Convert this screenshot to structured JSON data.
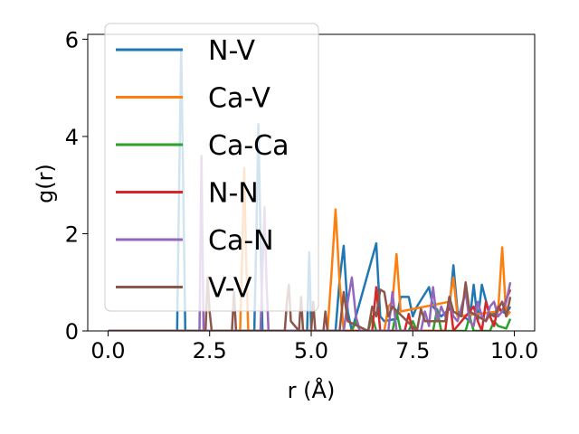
{
  "chart_data": {
    "type": "line",
    "title": "",
    "xlabel": "r (Å)",
    "ylabel": "g(r)",
    "xlim": [
      -0.5,
      10.5
    ],
    "ylim": [
      0,
      6.1
    ],
    "xticks": [
      "0.0",
      "2.5",
      "5.0",
      "7.5",
      "10.0"
    ],
    "yticks": [
      "0",
      "2",
      "4",
      "6"
    ],
    "legend": "upper-left",
    "grid": false,
    "series": [
      {
        "name": "N-V",
        "color": "#1f77b4",
        "x": [
          0,
          1.7,
          1.75,
          1.8,
          1.85,
          1.9,
          1.95,
          2.0,
          3.6,
          3.65,
          3.7,
          3.75,
          3.8,
          3.85,
          4.9,
          4.95,
          5.0,
          5.05,
          5.1,
          5.6,
          5.7,
          5.8,
          5.9,
          6.0,
          6.6,
          6.7,
          6.8,
          7.1,
          7.2,
          7.4,
          7.5,
          7.6,
          7.9,
          8.0,
          8.2,
          8.4,
          8.5,
          8.6,
          8.9,
          9.0,
          9.1,
          9.2,
          9.4,
          9.6,
          9.8,
          9.9
        ],
        "y": [
          0,
          0,
          3.0,
          5.8,
          3.0,
          0,
          0,
          0,
          0,
          2.0,
          4.25,
          2.0,
          0,
          0,
          0,
          1.62,
          0,
          0,
          0,
          0,
          1.05,
          1.75,
          0.4,
          0,
          1.8,
          0.3,
          0.2,
          0.25,
          0.7,
          0.7,
          0.3,
          0.5,
          0.9,
          0.5,
          0.3,
          0.45,
          1.35,
          0.4,
          0.2,
          0.95,
          0.2,
          0.95,
          0.3,
          0.45,
          0.35,
          0.5
        ]
      },
      {
        "name": "Ca-V",
        "color": "#ff7f0e",
        "x": [
          0,
          3.25,
          3.3,
          3.35,
          3.4,
          3.45,
          5.4,
          5.5,
          5.6,
          5.7,
          5.8,
          6.8,
          6.9,
          7.0,
          7.1,
          7.2,
          8.4,
          8.5,
          8.6,
          9.6,
          9.7,
          9.8,
          9.9
        ],
        "y": [
          0,
          0,
          1.5,
          3.35,
          1.5,
          0,
          0,
          1.2,
          2.5,
          1.0,
          0,
          0,
          0.5,
          0.6,
          1.58,
          0.4,
          0.6,
          1.1,
          0.3,
          0.4,
          1.72,
          0.3,
          0.4
        ]
      },
      {
        "name": "Ca-Ca",
        "color": "#2ca02c",
        "x": [
          0,
          6.0,
          6.1,
          6.2,
          6.4,
          6.5,
          6.6,
          7.0,
          7.1,
          7.2,
          7.4,
          7.5,
          7.6,
          8.0,
          8.1,
          8.2,
          8.8,
          8.9,
          9.0,
          9.4,
          9.5,
          9.6,
          9.8,
          9.9
        ],
        "y": [
          0,
          0,
          0.2,
          0,
          0,
          0.3,
          0,
          0,
          0.4,
          0,
          0,
          0.2,
          0,
          0,
          0.45,
          0,
          0,
          0.3,
          0,
          0,
          0.2,
          0.1,
          0.05,
          0.25
        ]
      },
      {
        "name": "N-N",
        "color": "#d62728",
        "x": [
          0,
          6.5,
          6.6,
          6.7,
          7.3,
          7.4,
          7.5,
          8.3,
          8.4,
          8.5,
          9.0,
          9.1,
          9.2,
          9.3,
          9.4,
          9.5,
          9.6,
          9.7,
          9.8,
          9.9
        ],
        "y": [
          0,
          0,
          0.9,
          0,
          0,
          0.35,
          0,
          0,
          0.7,
          0,
          0.5,
          0.2,
          0,
          0.6,
          0.3,
          0.1,
          0.5,
          0.4,
          0.65,
          0.85
        ]
      },
      {
        "name": "Ca-N",
        "color": "#9467bd",
        "x": [
          0,
          2.25,
          2.3,
          2.35,
          3.75,
          3.8,
          3.85,
          3.9,
          3.95,
          5.8,
          5.9,
          6.0,
          6.1,
          6.2,
          6.9,
          7.0,
          7.1,
          7.7,
          7.8,
          7.9,
          8.0,
          8.1,
          8.2,
          8.3,
          8.4,
          8.5,
          8.6,
          8.7,
          8.8,
          8.9,
          9.0,
          9.1,
          9.2,
          9.3,
          9.4,
          9.5,
          9.6,
          9.7,
          9.8,
          9.9
        ],
        "y": [
          0,
          0,
          3.6,
          0,
          0,
          1.2,
          2.55,
          1.0,
          0,
          0,
          0.6,
          1.1,
          0.3,
          0,
          0,
          0.8,
          0,
          0,
          0.4,
          0.1,
          0.9,
          0.2,
          0.5,
          0.3,
          0.6,
          0.3,
          0.2,
          0.5,
          0.8,
          0.2,
          0.1,
          0.6,
          0.3,
          0.2,
          0.5,
          0.6,
          0.3,
          0.4,
          0.6,
          1.0
        ]
      },
      {
        "name": "V-V",
        "color": "#8c564b",
        "x": [
          0,
          2.4,
          2.45,
          2.5,
          2.55,
          3.05,
          3.1,
          3.15,
          4.35,
          4.4,
          4.45,
          4.5,
          4.7,
          4.75,
          4.8,
          5.0,
          5.05,
          5.1,
          5.3,
          5.35,
          5.4,
          5.7,
          5.8,
          5.9,
          6.4,
          6.5,
          6.6,
          6.7,
          6.8,
          6.9,
          7.0,
          7.6,
          7.7,
          7.8,
          8.3,
          8.4,
          8.5,
          8.7,
          8.8,
          8.9,
          9.3,
          9.4,
          9.5,
          9.7,
          9.8,
          9.9
        ],
        "y": [
          0,
          0,
          1.1,
          0.4,
          0,
          0,
          0.8,
          0,
          0,
          0.6,
          0.95,
          0.2,
          0,
          0.7,
          0,
          0,
          0.6,
          0,
          0,
          0.4,
          0,
          0,
          0.8,
          0.2,
          0,
          0.5,
          0.3,
          0.85,
          0.8,
          0.3,
          0.5,
          0,
          0.45,
          0.2,
          0.2,
          0.7,
          0.4,
          0.3,
          1.0,
          0.4,
          0.2,
          0.35,
          0.3,
          0.6,
          0.3,
          0.7
        ]
      }
    ]
  }
}
